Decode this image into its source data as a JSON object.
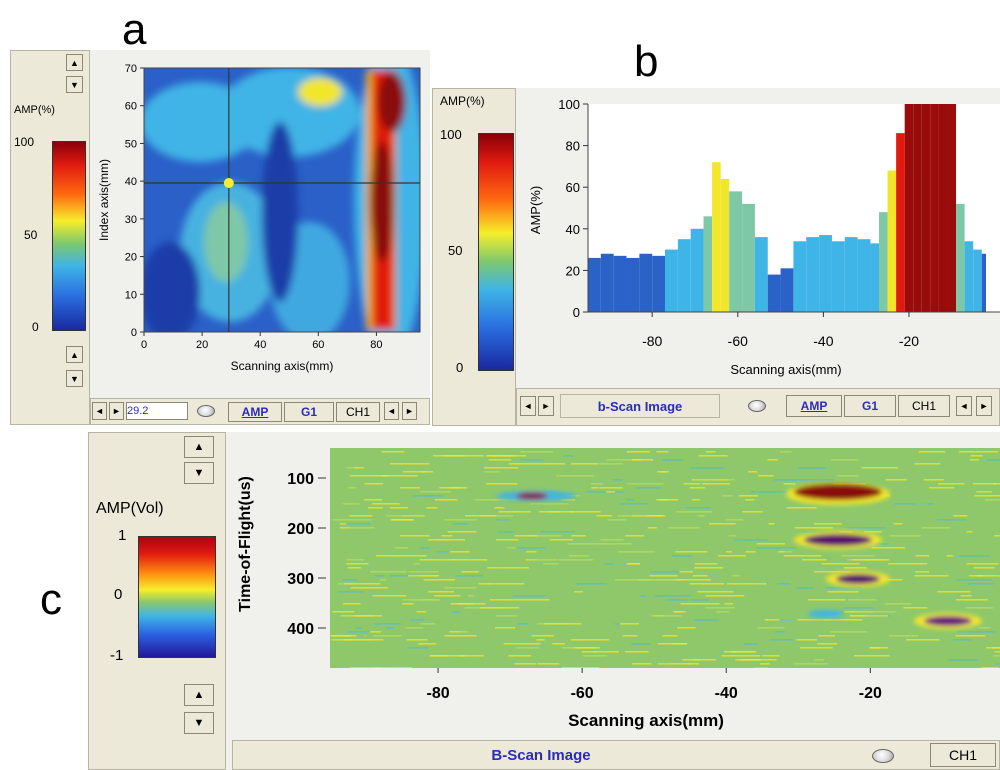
{
  "panels": {
    "a": {
      "letter": "a",
      "legend_title": "AMP(%)",
      "legend_ticks": [
        "100",
        "50",
        "0"
      ],
      "index_value": "29.2",
      "tabs": [
        "AMP",
        "G1",
        "CH1"
      ],
      "arrows": {
        "up": "▲",
        "down": "▼",
        "left": "◄",
        "right": "►"
      }
    },
    "b": {
      "letter": "b",
      "legend_title": "AMP(%)",
      "legend_ticks": [
        "100",
        "50",
        "0"
      ],
      "status": "b-Scan Image",
      "tabs": [
        "AMP",
        "G1",
        "CH1"
      ]
    },
    "c": {
      "letter": "c",
      "legend_title": "AMP(Vol)",
      "legend_ticks": [
        "1",
        "0",
        "-1"
      ],
      "status": "B-Scan Image",
      "tabs": [
        "CH1"
      ]
    }
  },
  "colors": {
    "panel_bg": "#f0f0ec",
    "tab_text": "#2b2bbf",
    "map_blue": "#2a52b8",
    "map_cyan": "#3fb4e6",
    "map_red": "#c01818",
    "map_dark_red": "#8a0a0a",
    "map_yellow": "#f2e62a",
    "map_green": "#8ec86a"
  },
  "chart_data": [
    {
      "type": "heatmap",
      "panel": "a",
      "xlabel": "Scanning axis(mm)",
      "ylabel": "Index axis(mm)",
      "xlim": [
        0,
        95
      ],
      "ylim": [
        0,
        70
      ],
      "xticks": [
        0,
        20,
        40,
        60,
        80
      ],
      "yticks": [
        0,
        10,
        20,
        30,
        40,
        50,
        60,
        70
      ],
      "crosshair": {
        "x": 29.2,
        "y": 39.5
      },
      "colorbar": {
        "min": 0,
        "max": 100,
        "label": "AMP(%)"
      }
    },
    {
      "type": "area",
      "panel": "b",
      "xlabel": "Scanning axis(mm)",
      "ylabel": "AMP(%)",
      "xlim": [
        -95,
        -2
      ],
      "ylim": [
        0,
        100
      ],
      "xticks": [
        -80,
        -60,
        -40,
        -20
      ],
      "yticks": [
        0,
        20,
        40,
        60,
        80,
        100
      ],
      "x": [
        -95,
        -92,
        -89,
        -86,
        -83,
        -80,
        -77,
        -74,
        -71,
        -68,
        -66,
        -64,
        -62,
        -59,
        -56,
        -53,
        -50,
        -47,
        -44,
        -41,
        -38,
        -35,
        -32,
        -29,
        -27,
        -25,
        -23,
        -21,
        -19,
        -17,
        -15,
        -13,
        -11,
        -9,
        -7,
        -5,
        -3
      ],
      "values": [
        26,
        28,
        27,
        26,
        28,
        27,
        30,
        35,
        40,
        46,
        72,
        64,
        58,
        52,
        36,
        18,
        21,
        34,
        36,
        37,
        34,
        36,
        35,
        33,
        48,
        68,
        86,
        100,
        100,
        100,
        100,
        100,
        100,
        52,
        34,
        30,
        28
      ]
    },
    {
      "type": "heatmap",
      "panel": "c",
      "xlabel": "Scanning axis(mm)",
      "ylabel": "Time-of-Flight(us)",
      "xlim": [
        -95,
        -2
      ],
      "ylim": [
        480,
        40
      ],
      "xticks": [
        -80,
        -60,
        -40,
        -20
      ],
      "yticks": [
        100,
        200,
        300,
        400
      ],
      "colorbar": {
        "min": -1,
        "max": 1,
        "label": "AMP(Vol)"
      }
    }
  ]
}
